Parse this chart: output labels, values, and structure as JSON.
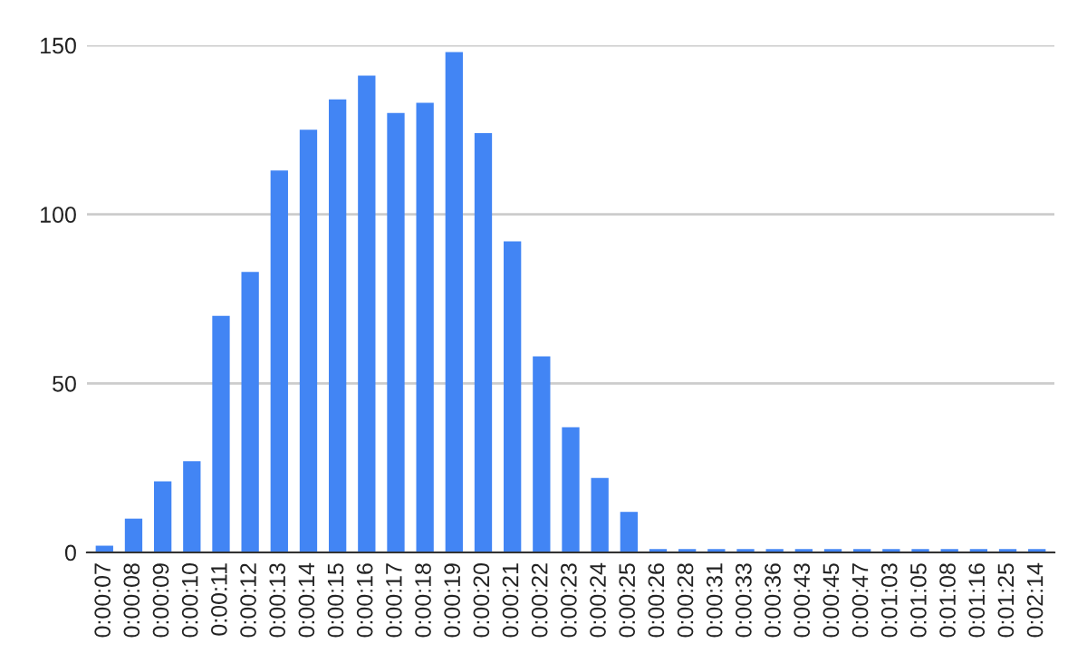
{
  "chart_data": {
    "type": "bar",
    "categories": [
      "0:00:07",
      "0:00:08",
      "0:00:09",
      "0:00:10",
      "0:00:11",
      "0:00:12",
      "0:00:13",
      "0:00:14",
      "0:00:15",
      "0:00:16",
      "0:00:17",
      "0:00:18",
      "0:00:19",
      "0:00:20",
      "0:00:21",
      "0:00:22",
      "0:00:23",
      "0:00:24",
      "0:00:25",
      "0:00:26",
      "0:00:28",
      "0:00:31",
      "0:00:33",
      "0:00:36",
      "0:00:43",
      "0:00:45",
      "0:00:47",
      "0:01:03",
      "0:01:05",
      "0:01:08",
      "0:01:16",
      "0:01:25",
      "0:02:14"
    ],
    "values": [
      2,
      10,
      21,
      27,
      70,
      83,
      113,
      125,
      134,
      141,
      130,
      133,
      148,
      124,
      92,
      58,
      37,
      22,
      12,
      1,
      1,
      1,
      1,
      1,
      1,
      1,
      1,
      1,
      1,
      1,
      1,
      1,
      1
    ],
    "color": "#4285f4",
    "ylim": [
      0,
      150
    ],
    "yticks": [
      0,
      50,
      100,
      150
    ],
    "grid": "y"
  }
}
